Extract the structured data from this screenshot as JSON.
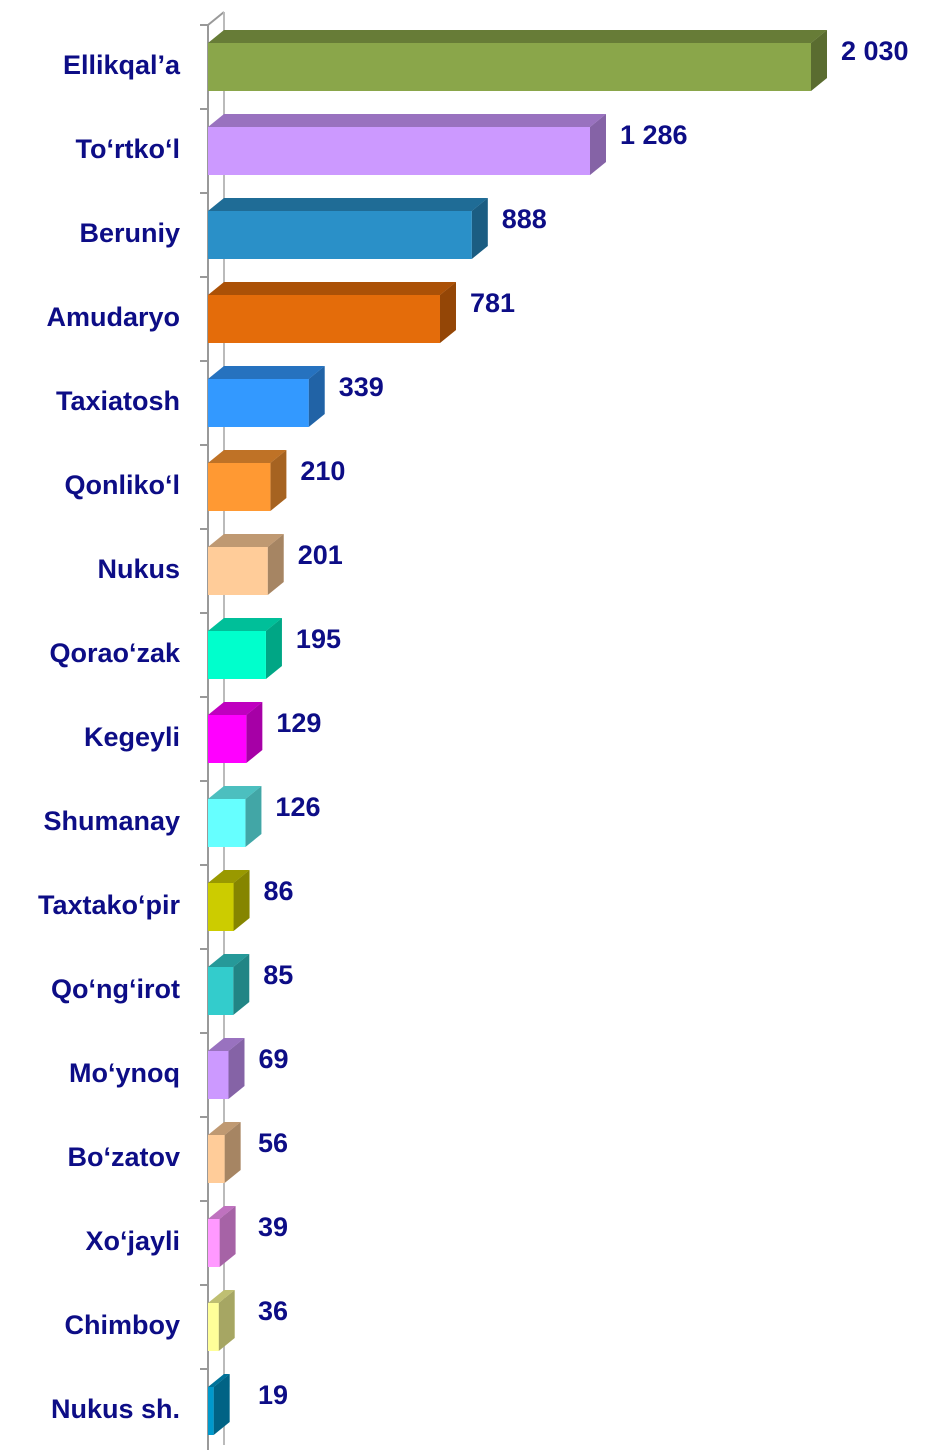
{
  "chart_data": {
    "type": "bar",
    "orientation": "horizontal",
    "categories": [
      "Ellikqal’a",
      "To‘rtko‘l",
      "Beruniy",
      "Amudaryo",
      "Taxiatosh",
      "Qonliko‘l",
      "Nukus",
      "Qorao‘zak",
      "Kegeyli",
      "Shumanay",
      "Taxtako‘pir",
      "Qo‘ng‘irot",
      "Mo‘ynoq",
      "Bo‘zatov",
      "Xo‘jayli",
      "Chimboy",
      "Nukus sh."
    ],
    "values": [
      2030,
      1286,
      888,
      781,
      339,
      210,
      201,
      195,
      129,
      126,
      86,
      85,
      69,
      56,
      39,
      36,
      19
    ],
    "value_labels": [
      "2 030",
      "1 286",
      "888",
      "781",
      "339",
      "210",
      "201",
      "195",
      "129",
      "126",
      "86",
      "85",
      "69",
      "56",
      "39",
      "36",
      "19"
    ],
    "colors": [
      "#8aa64a",
      "#cc99ff",
      "#2a90c8",
      "#e46c0a",
      "#3399ff",
      "#ff9933",
      "#ffcc99",
      "#00ffcc",
      "#ff00ff",
      "#66ffff",
      "#cccc00",
      "#33cccc",
      "#cc99ff",
      "#ffcc99",
      "#ff99ff",
      "#ffff99",
      "#0099cc"
    ]
  }
}
